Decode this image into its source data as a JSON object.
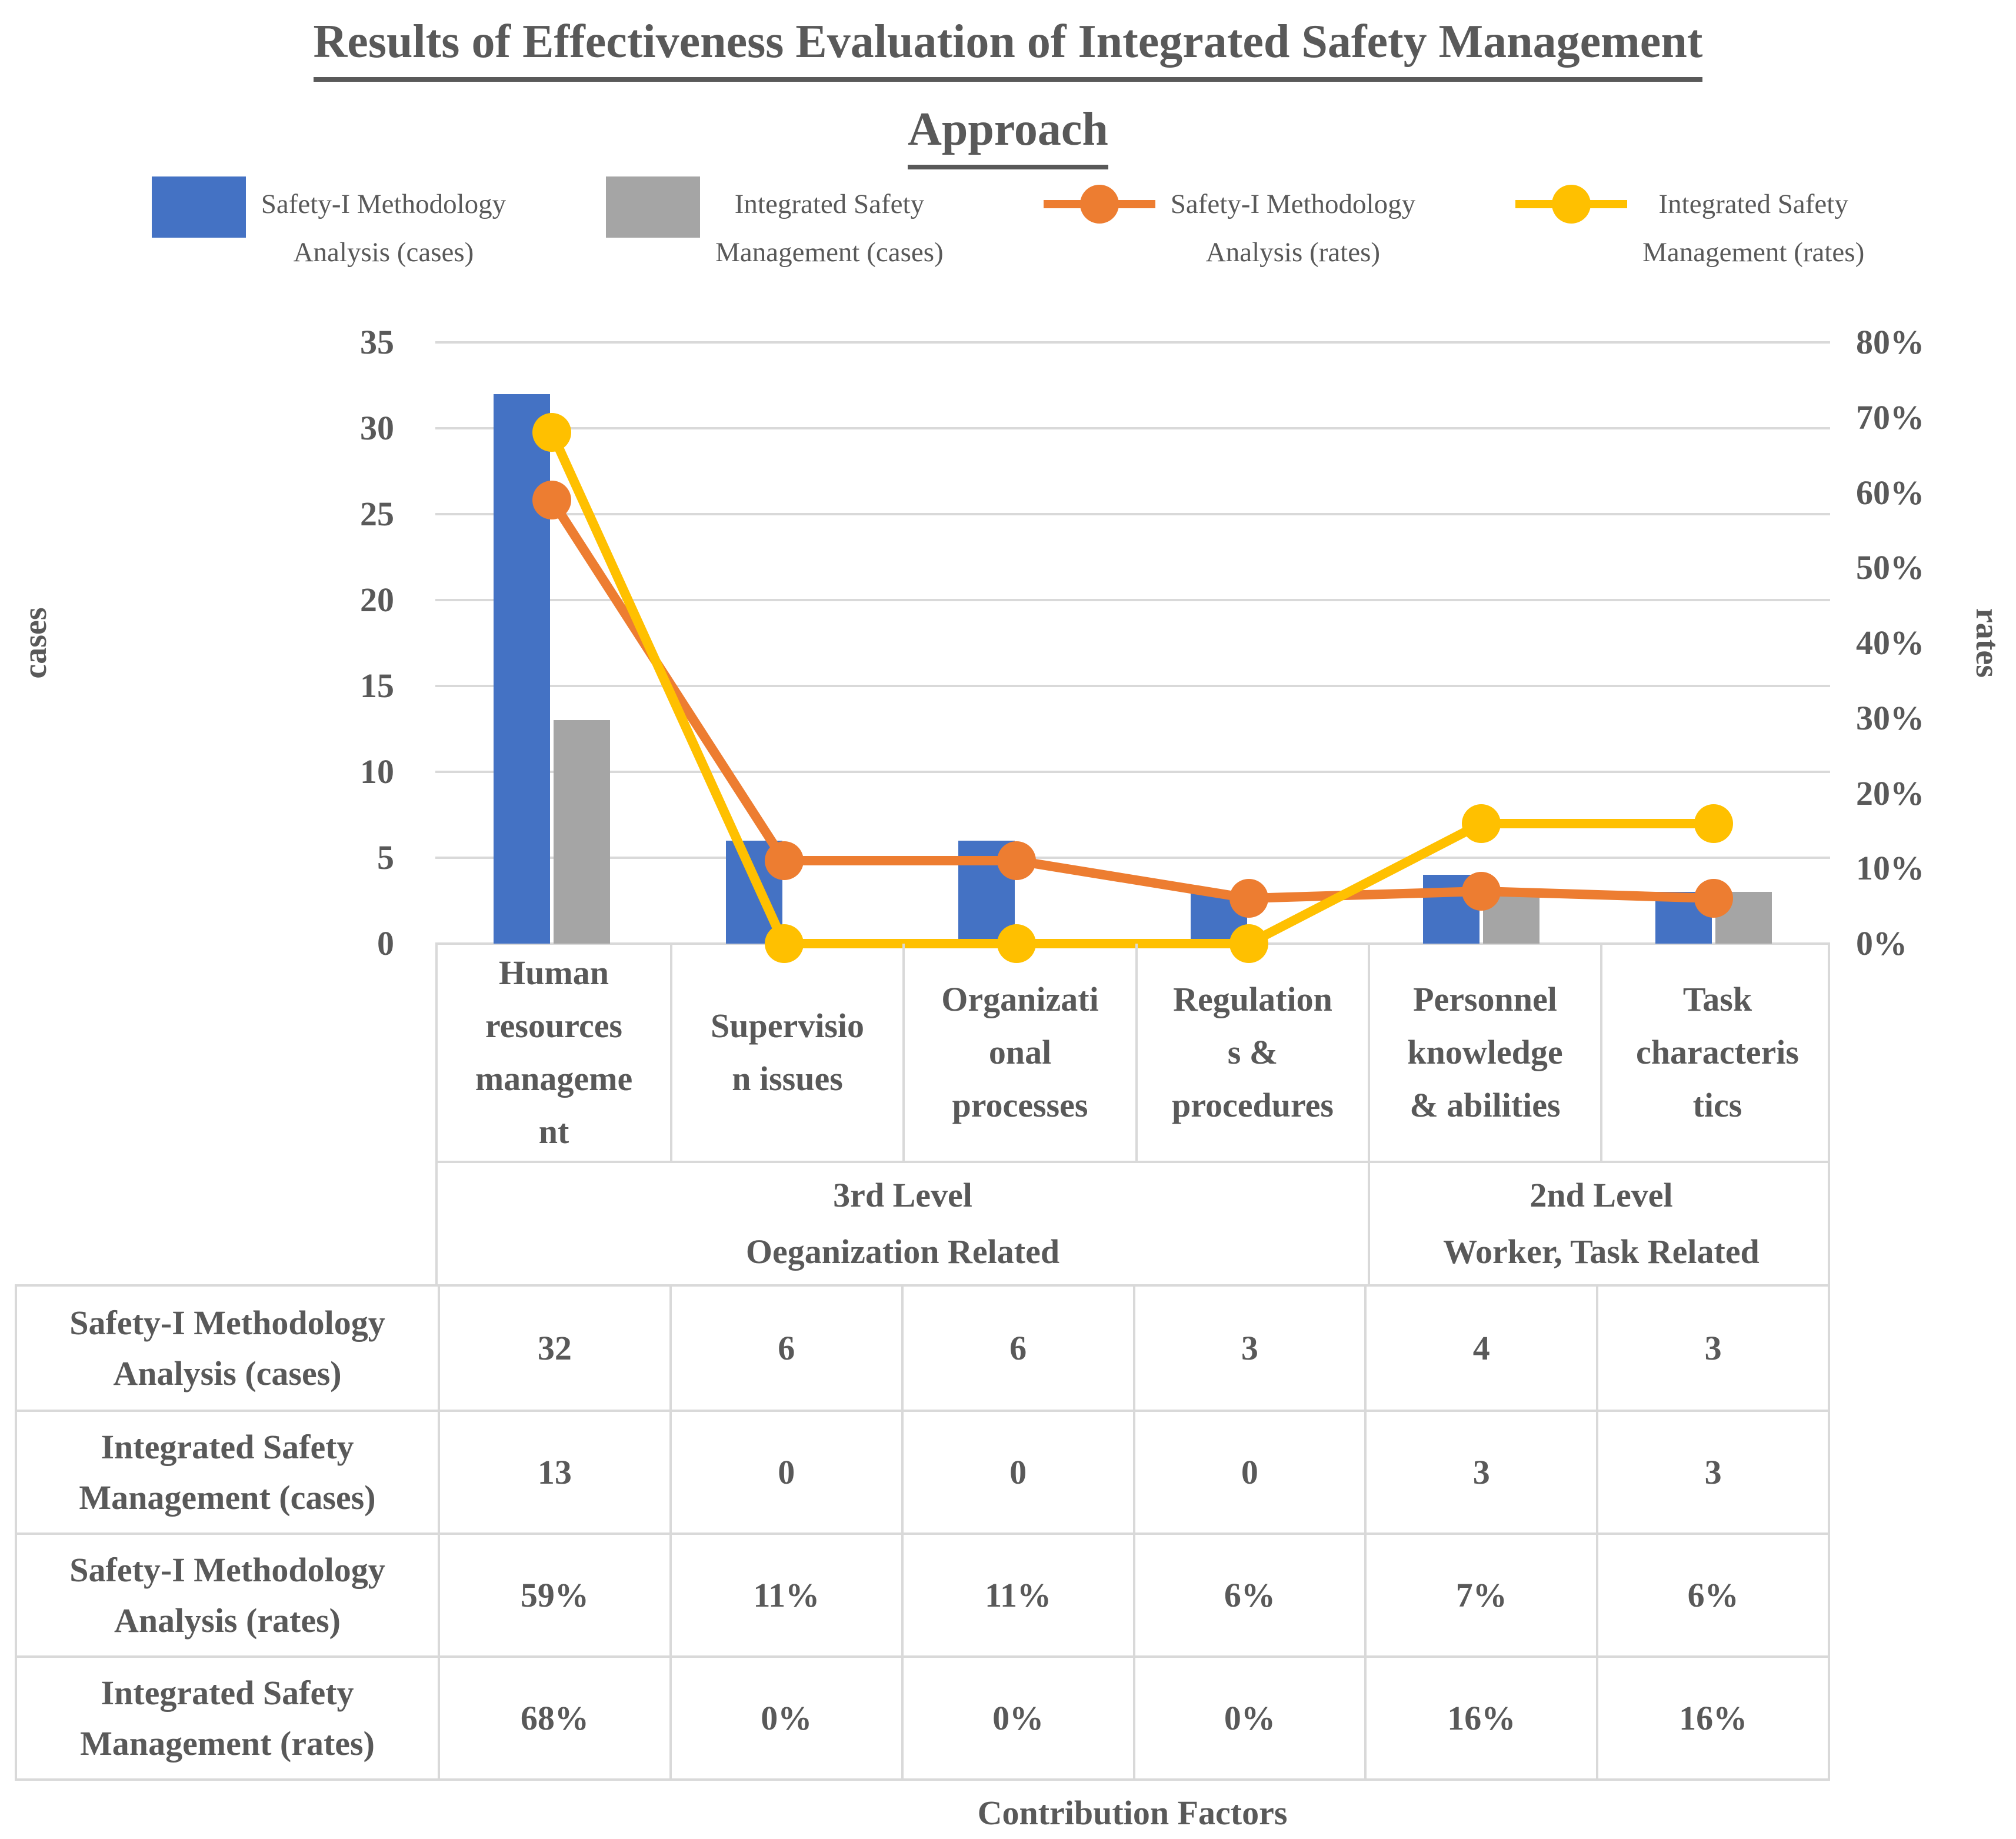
{
  "title": {
    "line1": "Results of Effectiveness Evaluation of Integrated Safety Management",
    "line2": "Approach"
  },
  "legend": {
    "position": "top",
    "items": [
      {
        "type": "bar",
        "color": "#4472C4",
        "line1": "Safety-I Methodology",
        "line2": "Analysis (cases)"
      },
      {
        "type": "bar",
        "color": "#A5A5A5",
        "line1": "Integrated Safety",
        "line2": "Management (cases)"
      },
      {
        "type": "line",
        "color": "#ED7D31",
        "line1": "Safety-I Methodology",
        "line2": "Analysis (rates)"
      },
      {
        "type": "line",
        "color": "#FFC000",
        "line1": "Integrated Safety",
        "line2": "Management (rates)"
      }
    ]
  },
  "axes": {
    "left_title": "cases",
    "right_title": "rates",
    "x_title": "Contribution Factors",
    "left_ticks": [
      "35",
      "30",
      "25",
      "20",
      "15",
      "10",
      "5",
      "0"
    ],
    "right_ticks": [
      "80%",
      "70%",
      "60%",
      "50%",
      "40%",
      "30%",
      "20%",
      "10%",
      "0%"
    ]
  },
  "chart_data": {
    "type": "combo-bar-line",
    "title": "Results of Effectiveness Evaluation of Integrated Safety Management Approach",
    "grid": true,
    "legend_position": "top",
    "xlabel": "Contribution Factors",
    "categories": [
      "Human resources management",
      "Supervision issues",
      "Organizational processes",
      "Regulations & procedures",
      "Personnel knowledge & abilities",
      "Task characteristics"
    ],
    "category_display": [
      "Human\nresources\nmanageme\nnt",
      "Supervisio\nn issues",
      "Organizati\nonal\nprocesses",
      "Regulation\ns &\nprocedures",
      "Personnel\nknowledge\n& abilities",
      "Task\ncharacteris\ntics"
    ],
    "groups": [
      {
        "label": "3rd Level\nOeganization Related",
        "span": 4
      },
      {
        "label": "2nd Level\nWorker, Task Related",
        "span": 2
      }
    ],
    "left_axis": {
      "label": "cases",
      "min": 0,
      "max": 35,
      "step": 5
    },
    "right_axis": {
      "label": "rates",
      "min_pct": 0,
      "max_pct": 80,
      "step_pct": 10
    },
    "series": [
      {
        "name": "Safety-I Methodology Analysis (cases)",
        "type": "bar",
        "axis": "left",
        "color": "#4472C4",
        "values": [
          32,
          6,
          6,
          3,
          4,
          3
        ]
      },
      {
        "name": "Integrated Safety Management (cases)",
        "type": "bar",
        "axis": "left",
        "color": "#A5A5A5",
        "values": [
          13,
          0,
          0,
          0,
          3,
          3
        ]
      },
      {
        "name": "Safety-I Methodology Analysis (rates)",
        "type": "line",
        "axis": "right",
        "color": "#ED7D31",
        "values": [
          59,
          11,
          11,
          6,
          7,
          6
        ]
      },
      {
        "name": "Integrated Safety Management (rates)",
        "type": "line",
        "axis": "right",
        "color": "#FFC000",
        "values": [
          68,
          0,
          0,
          0,
          16,
          16
        ]
      }
    ],
    "table_rows": [
      {
        "label": "Safety-I Methodology\nAnalysis (cases)",
        "cells": [
          "32",
          "6",
          "6",
          "3",
          "4",
          "3"
        ]
      },
      {
        "label": "Integrated Safety\nManagement (cases)",
        "cells": [
          "13",
          "0",
          "0",
          "0",
          "3",
          "3"
        ]
      },
      {
        "label": "Safety-I Methodology\nAnalysis (rates)",
        "cells": [
          "59%",
          "11%",
          "11%",
          "6%",
          "7%",
          "6%"
        ]
      },
      {
        "label": "Integrated Safety\nManagement (rates)",
        "cells": [
          "68%",
          "0%",
          "0%",
          "0%",
          "16%",
          "16%"
        ]
      }
    ]
  },
  "colors": {
    "bar_blue": "#4472C4",
    "bar_gray": "#A5A5A5",
    "line_orange": "#ED7D31",
    "line_yellow": "#FFC000",
    "text": "#595959",
    "grid": "#D9D9D9"
  }
}
